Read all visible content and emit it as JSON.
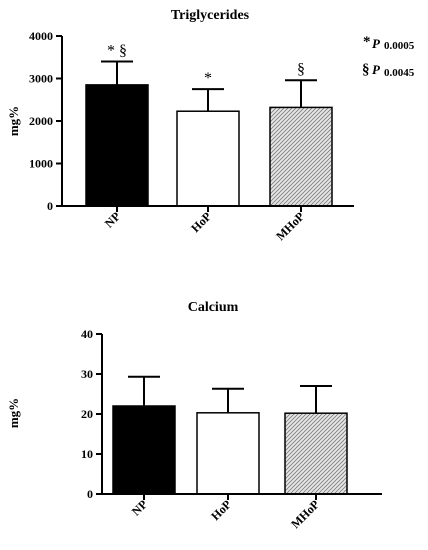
{
  "chart_data": [
    {
      "type": "bar",
      "title": "Triglycerides",
      "ylabel": "mg%",
      "xlabel": "",
      "ylim": [
        0,
        4000
      ],
      "yticks": [
        0,
        1000,
        2000,
        3000,
        4000
      ],
      "categories": [
        "NP",
        "HoP",
        "MHoP"
      ],
      "values": [
        2850,
        2230,
        2320
      ],
      "errors": [
        550,
        520,
        640
      ],
      "fills": [
        "#000000",
        "#ffffff",
        "hatched"
      ],
      "markers": [
        "* §",
        "*",
        "§"
      ],
      "annotations": [
        {
          "symbol": "*",
          "p_label": "P",
          "value": "0.0005"
        },
        {
          "symbol": "§",
          "p_label": "P",
          "value": "0.0045"
        }
      ]
    },
    {
      "type": "bar",
      "title": "Calcium",
      "ylabel": "mg%",
      "xlabel": "",
      "ylim": [
        0,
        40
      ],
      "yticks": [
        0,
        10,
        20,
        30,
        40
      ],
      "categories": [
        "NP",
        "HoP",
        "MHoP"
      ],
      "values": [
        22,
        20.3,
        20.2
      ],
      "errors": [
        7.3,
        6,
        6.8
      ],
      "fills": [
        "#000000",
        "#ffffff",
        "hatched"
      ]
    }
  ]
}
